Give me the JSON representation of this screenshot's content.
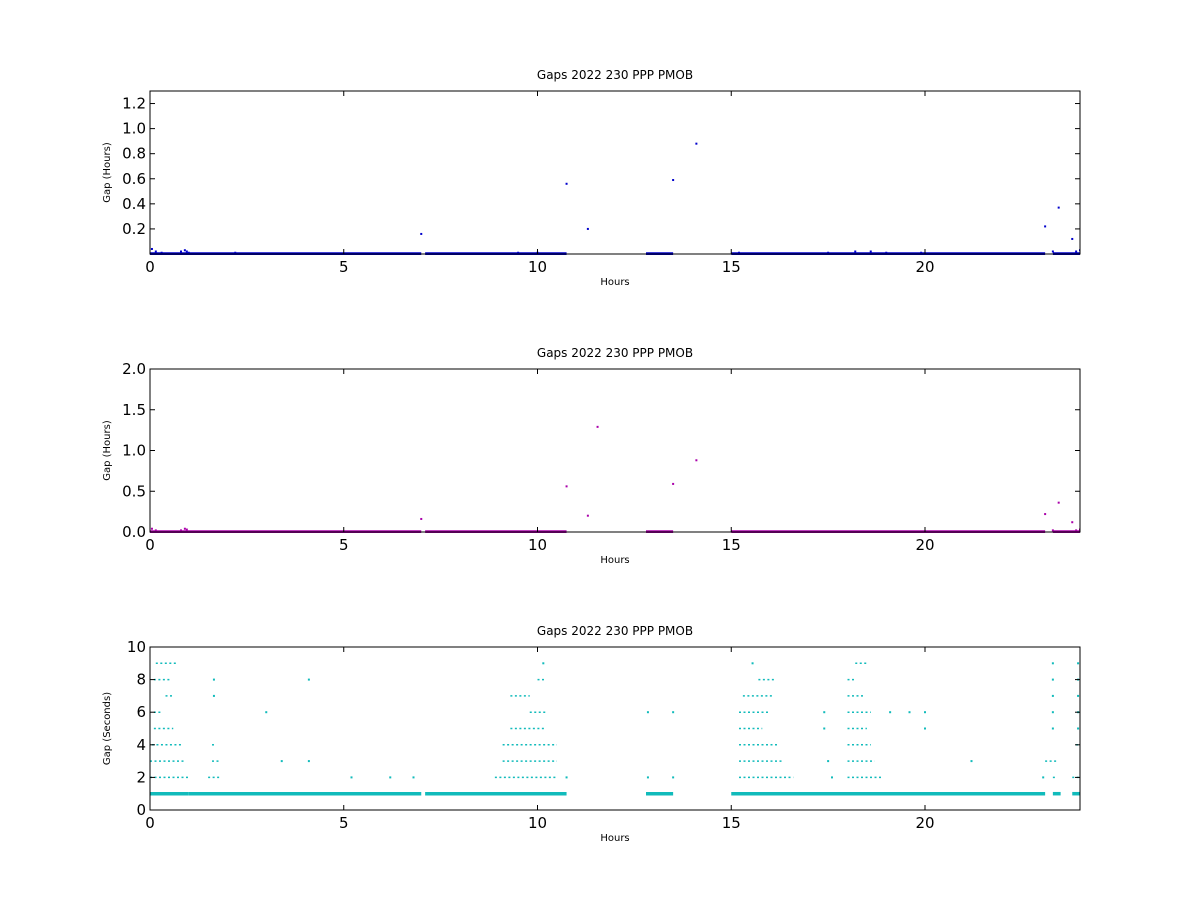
{
  "colors": {
    "panel1": "#0000cc",
    "panel2": "#aa00aa",
    "panel3": "#11bbbb"
  },
  "chart_data": [
    {
      "type": "scatter",
      "title": "Gaps 2022 230 PPP  PMOB",
      "xlabel": "Hours",
      "ylabel": "Gap (Hours)",
      "xlim": [
        0,
        24
      ],
      "ylim": [
        0,
        1.3
      ],
      "xticks": [
        0,
        5,
        10,
        15,
        20
      ],
      "yticks": [
        0.2,
        0.4,
        0.6,
        0.8,
        1.0,
        1.2
      ],
      "ytick_labels": [
        "0.2",
        "0.4",
        "0.6",
        "0.8",
        "1.0",
        "1.2"
      ],
      "grid": false,
      "color_key": "panel1",
      "series": [
        {
          "baseline_runs": [
            [
              0,
              7.0,
              0.0
            ],
            [
              7.1,
              10.75,
              0.0
            ],
            [
              12.8,
              13.5,
              0.0
            ],
            [
              15.0,
              23.1,
              0.0
            ],
            [
              23.3,
              24.0,
              0.0
            ]
          ],
          "points": [
            [
              0.05,
              0.04
            ],
            [
              0.15,
              0.02
            ],
            [
              0.3,
              0.01
            ],
            [
              0.8,
              0.02
            ],
            [
              0.9,
              0.03
            ],
            [
              0.95,
              0.02
            ],
            [
              1.0,
              0.01
            ],
            [
              2.2,
              0.01
            ],
            [
              7.0,
              0.16
            ],
            [
              9.5,
              0.01
            ],
            [
              10.0,
              0.01
            ],
            [
              10.75,
              0.56
            ],
            [
              11.3,
              0.2
            ],
            [
              13.5,
              0.59
            ],
            [
              14.1,
              0.88
            ],
            [
              15.2,
              0.01
            ],
            [
              17.5,
              0.01
            ],
            [
              18.2,
              0.02
            ],
            [
              18.6,
              0.02
            ],
            [
              19.0,
              0.01
            ],
            [
              19.9,
              0.01
            ],
            [
              23.1,
              0.22
            ],
            [
              23.3,
              0.02
            ],
            [
              23.45,
              0.37
            ],
            [
              23.8,
              0.12
            ],
            [
              23.9,
              0.02
            ],
            [
              24.0,
              0.03
            ]
          ]
        }
      ]
    },
    {
      "type": "scatter",
      "title": "Gaps 2022 230 PPP  PMOB",
      "xlabel": "Hours",
      "ylabel": "Gap (Hours)",
      "xlim": [
        0,
        24
      ],
      "ylim": [
        0,
        2.0
      ],
      "xticks": [
        0,
        5,
        10,
        15,
        20
      ],
      "yticks": [
        0.0,
        0.5,
        1.0,
        1.5,
        2.0
      ],
      "ytick_labels": [
        "0.0",
        "0.5",
        "1.0",
        "1.5",
        "2.0"
      ],
      "grid": false,
      "color_key": "panel2",
      "series": [
        {
          "baseline_runs": [
            [
              0,
              7.0,
              0.0
            ],
            [
              7.1,
              10.75,
              0.0
            ],
            [
              12.8,
              13.5,
              0.0
            ],
            [
              15.0,
              23.1,
              0.0
            ],
            [
              23.3,
              24.0,
              0.0
            ]
          ],
          "points": [
            [
              0.05,
              0.04
            ],
            [
              0.15,
              0.02
            ],
            [
              0.8,
              0.02
            ],
            [
              0.9,
              0.04
            ],
            [
              0.95,
              0.03
            ],
            [
              7.0,
              0.16
            ],
            [
              10.75,
              0.56
            ],
            [
              11.3,
              0.2
            ],
            [
              11.55,
              1.29
            ],
            [
              13.5,
              0.59
            ],
            [
              14.1,
              0.88
            ],
            [
              23.1,
              0.22
            ],
            [
              23.3,
              0.02
            ],
            [
              23.45,
              0.36
            ],
            [
              23.8,
              0.12
            ],
            [
              23.9,
              0.02
            ],
            [
              24.0,
              0.03
            ]
          ]
        }
      ]
    },
    {
      "type": "scatter",
      "title": "Gaps 2022 230 PPP  PMOB",
      "xlabel": "Hours",
      "ylabel": "Gap (Seconds)",
      "xlim": [
        0,
        24
      ],
      "ylim": [
        0,
        10
      ],
      "xticks": [
        0,
        5,
        10,
        15,
        20
      ],
      "yticks": [
        0,
        2,
        4,
        6,
        8,
        10
      ],
      "ytick_labels": [
        "0",
        "2",
        "4",
        "6",
        "8",
        "10"
      ],
      "grid": false,
      "color_key": "panel3",
      "series": [
        {
          "baseline_runs": [
            [
              0,
              1.0,
              1
            ],
            [
              1.0,
              7.0,
              1
            ],
            [
              7.1,
              10.75,
              1
            ],
            [
              12.8,
              13.5,
              1
            ],
            [
              15.0,
              23.1,
              1
            ],
            [
              23.3,
              23.5,
              1
            ],
            [
              23.8,
              24.0,
              1
            ]
          ],
          "clusters": [
            [
              0.0,
              1.0,
              2
            ],
            [
              0.0,
              0.9,
              3
            ],
            [
              0.05,
              0.8,
              4
            ],
            [
              0.1,
              0.6,
              5
            ],
            [
              0.1,
              0.3,
              6
            ],
            [
              0.4,
              0.6,
              7
            ],
            [
              0.1,
              0.5,
              8
            ],
            [
              0.15,
              0.7,
              9
            ],
            [
              1.5,
              1.8,
              2
            ],
            [
              1.6,
              1.8,
              3
            ],
            [
              1.6,
              1.7,
              4
            ],
            [
              1.65,
              1.65,
              7
            ],
            [
              1.65,
              1.65,
              8
            ],
            [
              8.9,
              10.5,
              2
            ],
            [
              9.1,
              10.5,
              3
            ],
            [
              9.1,
              10.5,
              4
            ],
            [
              9.3,
              10.2,
              5
            ],
            [
              9.8,
              10.2,
              6
            ],
            [
              9.3,
              9.8,
              7
            ],
            [
              10.0,
              10.2,
              8
            ],
            [
              10.15,
              10.15,
              9
            ],
            [
              15.2,
              16.6,
              2
            ],
            [
              15.2,
              16.3,
              3
            ],
            [
              15.2,
              16.2,
              4
            ],
            [
              15.2,
              15.8,
              5
            ],
            [
              15.2,
              16.0,
              6
            ],
            [
              15.3,
              16.1,
              7
            ],
            [
              15.7,
              16.1,
              8
            ],
            [
              15.55,
              15.55,
              9
            ],
            [
              18.0,
              18.9,
              2
            ],
            [
              18.0,
              18.7,
              3
            ],
            [
              18.0,
              18.6,
              4
            ],
            [
              18.0,
              18.5,
              5
            ],
            [
              18.0,
              18.6,
              6
            ],
            [
              18.0,
              18.4,
              7
            ],
            [
              18.0,
              18.2,
              8
            ],
            [
              18.2,
              18.5,
              9
            ],
            [
              23.1,
              23.4,
              3
            ],
            [
              23.3,
              23.4,
              2
            ],
            [
              23.3,
              23.3,
              5
            ],
            [
              23.3,
              23.3,
              6
            ],
            [
              23.3,
              23.3,
              7
            ],
            [
              23.3,
              23.3,
              8
            ],
            [
              23.3,
              23.3,
              9
            ],
            [
              23.8,
              24.0,
              2
            ],
            [
              23.9,
              24.0,
              4
            ],
            [
              23.95,
              24.0,
              5
            ],
            [
              23.95,
              24.0,
              6
            ],
            [
              23.95,
              24.0,
              7
            ],
            [
              23.95,
              24.0,
              8
            ],
            [
              23.95,
              24.0,
              9
            ]
          ],
          "points": [
            [
              3.0,
              6
            ],
            [
              3.4,
              3
            ],
            [
              4.1,
              8
            ],
            [
              4.1,
              3
            ],
            [
              5.2,
              2
            ],
            [
              6.2,
              2
            ],
            [
              6.8,
              2
            ],
            [
              10.75,
              2
            ],
            [
              12.85,
              6
            ],
            [
              12.85,
              2
            ],
            [
              13.5,
              6
            ],
            [
              13.5,
              2
            ],
            [
              17.4,
              6
            ],
            [
              17.4,
              5
            ],
            [
              17.5,
              3
            ],
            [
              17.6,
              2
            ],
            [
              19.1,
              6
            ],
            [
              19.6,
              6
            ],
            [
              20.0,
              6
            ],
            [
              20.0,
              5
            ],
            [
              21.2,
              3
            ],
            [
              23.05,
              2
            ],
            [
              23.05,
              1
            ]
          ]
        }
      ]
    }
  ]
}
